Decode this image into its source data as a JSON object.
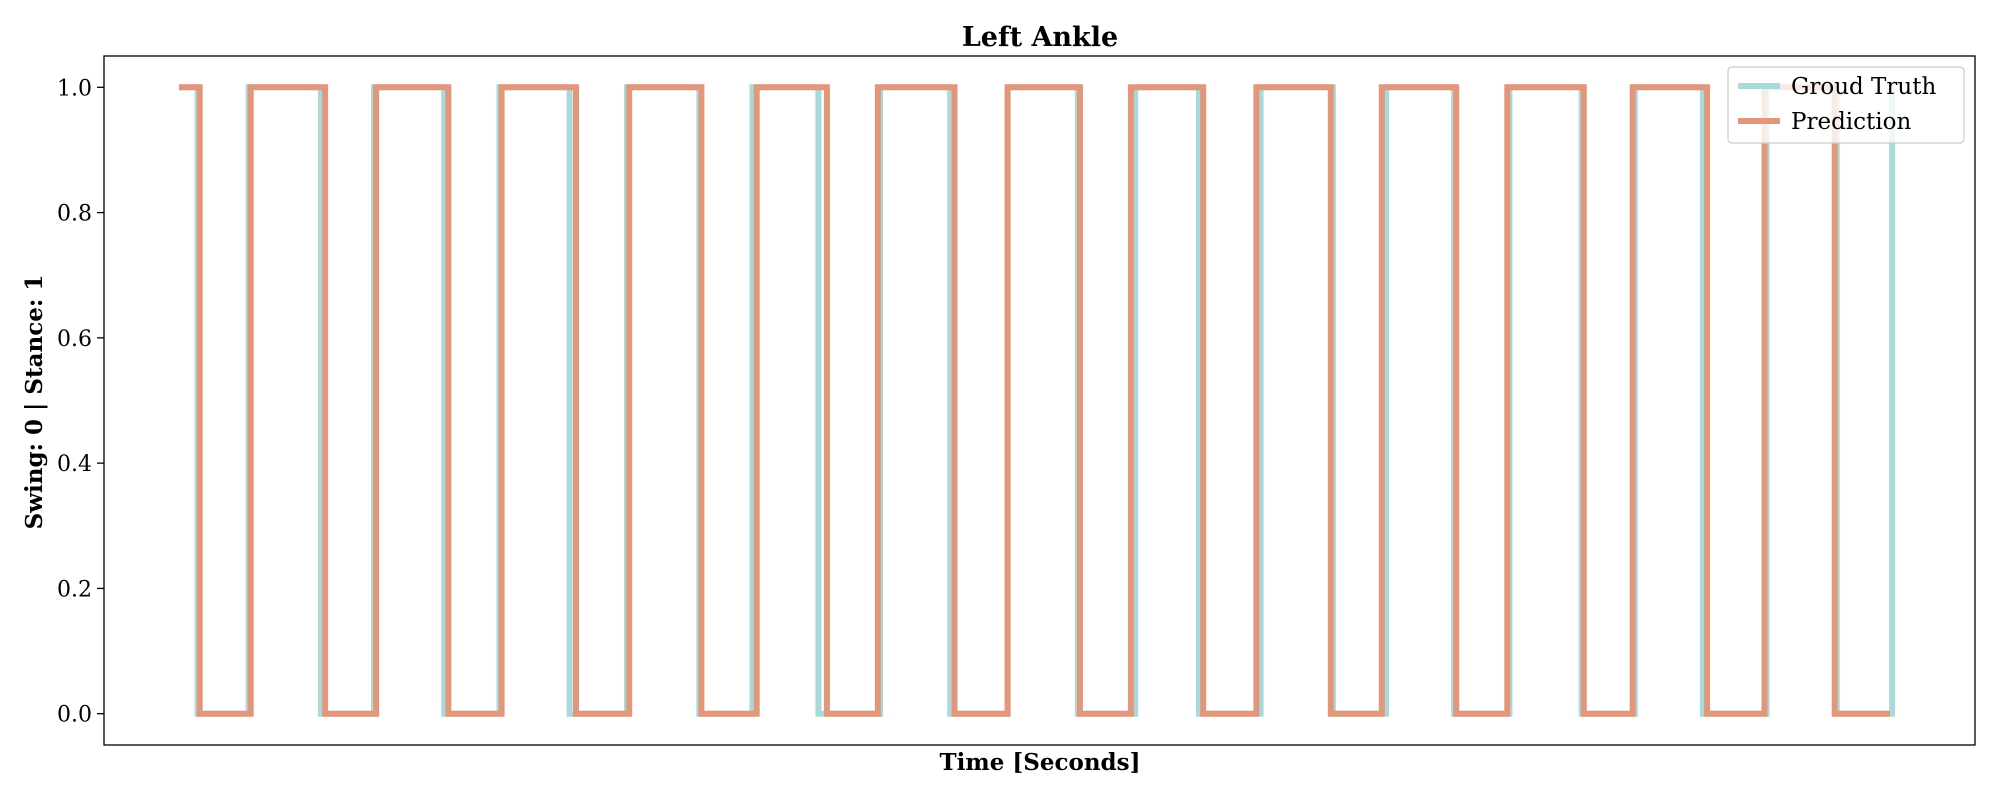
{
  "chart_data": {
    "type": "line",
    "title": "Left Ankle",
    "xlabel": "Time [Seconds]",
    "ylabel": "Swing: 0 | Stance: 1",
    "ylim": [
      -0.05,
      1.05
    ],
    "xlim": [
      -0.4,
      8.4
    ],
    "yticks": [
      0.0,
      0.2,
      0.4,
      0.6,
      0.8,
      1.0
    ],
    "ytick_labels": [
      "0.0",
      "0.2",
      "0.4",
      "0.6",
      "0.8",
      "1.0"
    ],
    "xticks_visible": false,
    "grid": false,
    "legend_position": "top-right",
    "series": [
      {
        "name": "Groud Truth",
        "color": "#a8dadc",
        "step_x": [
          0,
          0.04,
          0.28,
          0.62,
          0.87,
          1.2,
          1.46,
          1.79,
          2.06,
          2.4,
          2.65,
          2.96,
          3.25,
          3.58,
          3.85,
          4.18,
          4.45,
          4.75,
          5.04,
          5.38,
          5.63,
          5.95,
          6.21,
          6.55,
          6.8,
          7.12,
          7.42,
          7.75,
          8.01
        ],
        "step_y": [
          1,
          0,
          1,
          0,
          1,
          0,
          1,
          0,
          1,
          0,
          1,
          0,
          1,
          0,
          1,
          0,
          1,
          0,
          1,
          0,
          1,
          0,
          1,
          0,
          1,
          0,
          1,
          0,
          1
        ]
      },
      {
        "name": "Prediction",
        "color": "#e3967a",
        "step_x": [
          0,
          0.05,
          0.29,
          0.64,
          0.88,
          1.22,
          1.47,
          1.82,
          2.07,
          2.41,
          2.67,
          3.0,
          3.24,
          3.6,
          3.85,
          4.19,
          4.43,
          4.77,
          5.02,
          5.37,
          5.61,
          5.96,
          6.2,
          6.56,
          6.79,
          7.14,
          7.41,
          7.74,
          8.0
        ],
        "step_y": [
          1,
          0,
          1,
          0,
          1,
          0,
          1,
          0,
          1,
          0,
          1,
          0,
          1,
          0,
          1,
          0,
          1,
          0,
          1,
          0,
          1,
          0,
          1,
          0,
          1,
          0,
          1,
          0,
          0
        ]
      }
    ]
  }
}
